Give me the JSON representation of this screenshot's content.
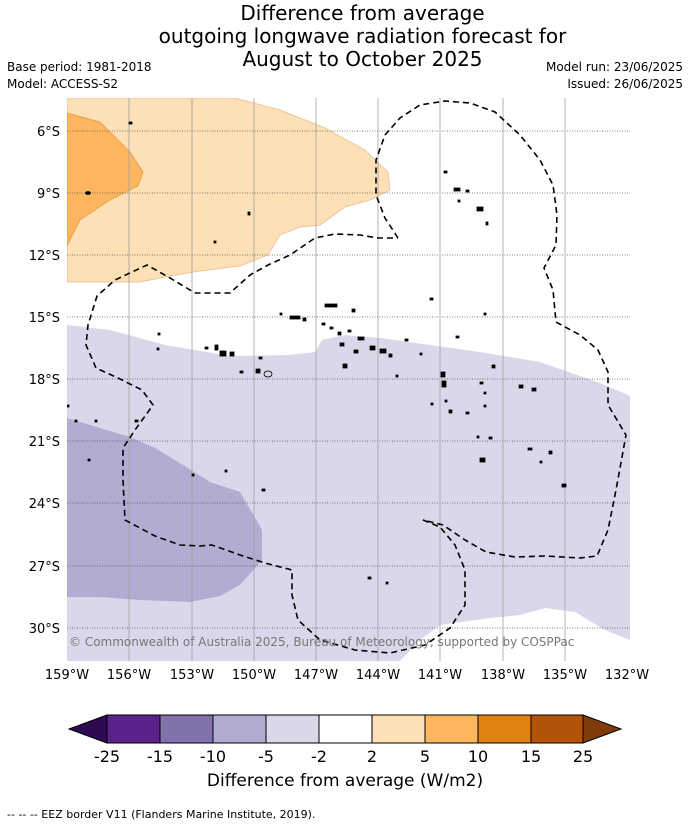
{
  "title": {
    "line1": "Difference from average",
    "line2": "outgoing longwave radiation forecast for",
    "line3": "August to October 2025"
  },
  "meta": {
    "base_period": "Base period: 1981-2018",
    "model": "Model: ACCESS-S2",
    "model_run": "Model run: 23/06/2025",
    "issued": "Issued: 26/06/2025"
  },
  "copyright": "© Commonwealth of Australia 2025, Bureau of Meteorology, supported by COSPPac",
  "map": {
    "lat_labels": [
      "6°S",
      "9°S",
      "12°S",
      "15°S",
      "18°S",
      "21°S",
      "24°S",
      "27°S",
      "30°S"
    ],
    "lon_labels": [
      "159°W",
      "156°W",
      "153°W",
      "150°W",
      "147°W",
      "144°W",
      "141°W",
      "138°W",
      "135°W",
      "132°W"
    ]
  },
  "colorbar": {
    "title": "Difference from average (W/m2)",
    "ticks": [
      "-25",
      "-15",
      "-10",
      "-5",
      "-2",
      "2",
      "5",
      "10",
      "15",
      "25"
    ],
    "colors": {
      "below_min": "#2d0a52",
      "bins": [
        "#5b2289",
        "#8272ab",
        "#b2acd3",
        "#d8d8ea",
        "#ffffff",
        "#fde0b5",
        "#fcb65f",
        "#e0820f",
        "#b35307"
      ],
      "above_max": "#7f3b08"
    }
  },
  "legend_footer": "--  --  -- EEZ border V11 (Flanders Marine Institute, 2019)."
}
